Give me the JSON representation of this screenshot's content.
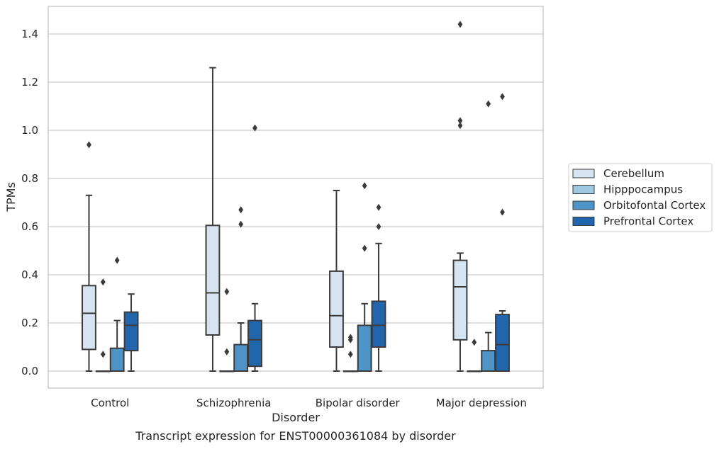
{
  "caption": "Transcript expression for ENST00000361084 by disorder",
  "colors": {
    "grid": "#cccccc",
    "frame": "#cccccc",
    "box_edge": "#3b3b3b",
    "series": [
      "#d6e4f2",
      "#9ec9e1",
      "#4e94c7",
      "#2166ac"
    ]
  },
  "chart_data": {
    "type": "box",
    "xlabel": "Disorder",
    "ylabel": "TPMs",
    "categories": [
      "Control",
      "Schizophrenia",
      "Bipolar disorder",
      "Major depression"
    ],
    "ylim": [
      -0.07,
      1.52
    ],
    "yticks": [
      0.0,
      0.2,
      0.4,
      0.6,
      0.8,
      1.0,
      1.2,
      1.4
    ],
    "ytick_labels": [
      "0.0",
      "0.2",
      "0.4",
      "0.6",
      "0.8",
      "1.0",
      "1.2",
      "1.4"
    ],
    "grid": true,
    "legend_position": "right",
    "series": [
      {
        "name": "Cerebellum",
        "boxes": [
          {
            "whisker_low": 0.0,
            "q1": 0.09,
            "median": 0.24,
            "q3": 0.355,
            "whisker_high": 0.73,
            "outliers": [
              0.94
            ]
          },
          {
            "whisker_low": 0.0,
            "q1": 0.15,
            "median": 0.325,
            "q3": 0.605,
            "whisker_high": 1.26,
            "outliers": []
          },
          {
            "whisker_low": 0.0,
            "q1": 0.1,
            "median": 0.23,
            "q3": 0.415,
            "whisker_high": 0.75,
            "outliers": []
          },
          {
            "whisker_low": 0.0,
            "q1": 0.13,
            "median": 0.35,
            "q3": 0.46,
            "whisker_high": 0.49,
            "outliers": [
              1.44,
              1.04,
              1.02
            ]
          }
        ]
      },
      {
        "name": "Hipppocampus",
        "boxes": [
          {
            "whisker_low": 0.0,
            "q1": 0.0,
            "median": 0.0,
            "q3": 0.0,
            "whisker_high": 0.0,
            "outliers": [
              0.37,
              0.07
            ]
          },
          {
            "whisker_low": 0.0,
            "q1": 0.0,
            "median": 0.0,
            "q3": 0.0,
            "whisker_high": 0.0,
            "outliers": [
              0.33,
              0.08
            ]
          },
          {
            "whisker_low": 0.0,
            "q1": 0.0,
            "median": 0.0,
            "q3": 0.0,
            "whisker_high": 0.0,
            "outliers": [
              0.14,
              0.13,
              0.07
            ]
          },
          {
            "whisker_low": 0.0,
            "q1": 0.0,
            "median": 0.0,
            "q3": 0.0,
            "whisker_high": 0.0,
            "outliers": [
              0.12
            ]
          }
        ]
      },
      {
        "name": "Orbitofontal Cortex",
        "boxes": [
          {
            "whisker_low": 0.0,
            "q1": 0.0,
            "median": 0.0,
            "q3": 0.095,
            "whisker_high": 0.21,
            "outliers": [
              0.46
            ]
          },
          {
            "whisker_low": 0.0,
            "q1": 0.0,
            "median": 0.0,
            "q3": 0.11,
            "whisker_high": 0.2,
            "outliers": [
              0.67,
              0.61
            ]
          },
          {
            "whisker_low": 0.0,
            "q1": 0.0,
            "median": 0.0,
            "q3": 0.19,
            "whisker_high": 0.28,
            "outliers": [
              0.77,
              0.51
            ]
          },
          {
            "whisker_low": 0.0,
            "q1": 0.0,
            "median": 0.0,
            "q3": 0.085,
            "whisker_high": 0.16,
            "outliers": [
              1.11
            ]
          }
        ]
      },
      {
        "name": "Prefrontal Cortex",
        "boxes": [
          {
            "whisker_low": 0.0,
            "q1": 0.085,
            "median": 0.19,
            "q3": 0.245,
            "whisker_high": 0.32,
            "outliers": []
          },
          {
            "whisker_low": 0.0,
            "q1": 0.02,
            "median": 0.13,
            "q3": 0.21,
            "whisker_high": 0.28,
            "outliers": [
              1.01
            ]
          },
          {
            "whisker_low": 0.0,
            "q1": 0.1,
            "median": 0.19,
            "q3": 0.29,
            "whisker_high": 0.53,
            "outliers": [
              0.68,
              0.6
            ]
          },
          {
            "whisker_low": 0.0,
            "q1": 0.0,
            "median": 0.11,
            "q3": 0.235,
            "whisker_high": 0.25,
            "outliers": [
              1.14,
              0.66
            ]
          }
        ]
      }
    ]
  }
}
